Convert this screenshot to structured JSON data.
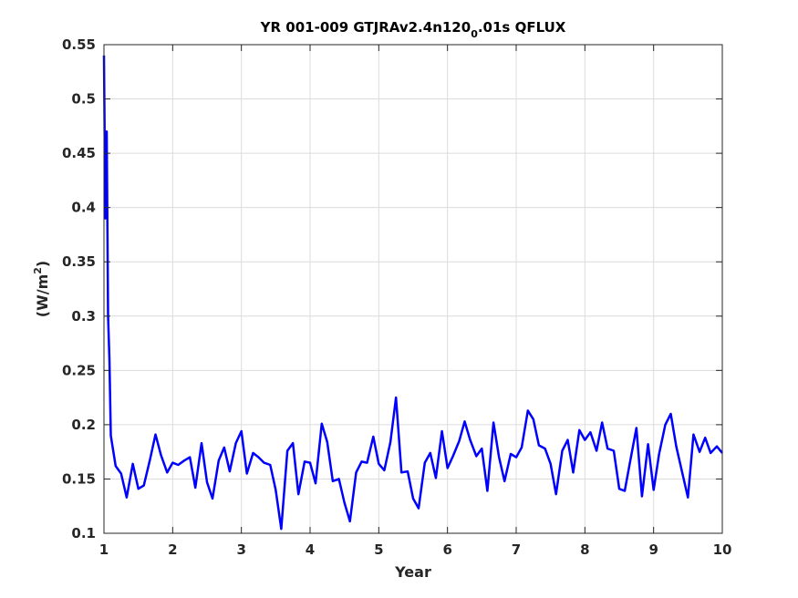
{
  "chart_data": {
    "type": "line",
    "title_main": "YR 001-009 GTJRAv2.4n120",
    "title_sub": "0",
    "title_tail": ".01s QFLUX",
    "xlabel": "Year",
    "ylabel_main": "(W/m",
    "ylabel_sup": "2",
    "ylabel_tail": ")",
    "xlim": [
      1,
      10
    ],
    "ylim": [
      0.1,
      0.55
    ],
    "xticks": [
      1,
      2,
      3,
      4,
      5,
      6,
      7,
      8,
      9,
      10
    ],
    "yticks": [
      0.1,
      0.15,
      0.2,
      0.25,
      0.3,
      0.35,
      0.4,
      0.45,
      0.5,
      0.55
    ],
    "xtick_labels": [
      "1",
      "2",
      "3",
      "4",
      "5",
      "6",
      "7",
      "8",
      "9",
      "10"
    ],
    "ytick_labels": [
      "0.1",
      "0.15",
      "0.2",
      "0.25",
      "0.3",
      "0.35",
      "0.4",
      "0.45",
      "0.5",
      "0.55"
    ],
    "grid": true,
    "line_color": "#0000ff",
    "series": [
      {
        "x": [
          1.0,
          1.02,
          1.04,
          1.06,
          1.08,
          1.1,
          1.17,
          1.25,
          1.33,
          1.42,
          1.5,
          1.58,
          1.67,
          1.75,
          1.83,
          1.92,
          2.0,
          2.08,
          2.17,
          2.25,
          2.33,
          2.42,
          2.5,
          2.58,
          2.67,
          2.75,
          2.83,
          2.92,
          3.0,
          3.08,
          3.17,
          3.25,
          3.33,
          3.42,
          3.5,
          3.58,
          3.67,
          3.75,
          3.83,
          3.92,
          4.0,
          4.08,
          4.17,
          4.25,
          4.33,
          4.42,
          4.5,
          4.58,
          4.67,
          4.75,
          4.83,
          4.92,
          5.0,
          5.08,
          5.17,
          5.25,
          5.33,
          5.42,
          5.5,
          5.58,
          5.67,
          5.75,
          5.83,
          5.92,
          6.0,
          6.08,
          6.17,
          6.25,
          6.33,
          6.42,
          6.5,
          6.58,
          6.67,
          6.75,
          6.83,
          6.92,
          7.0,
          7.08,
          7.17,
          7.25,
          7.33,
          7.42,
          7.5,
          7.58,
          7.67,
          7.75,
          7.83,
          7.92,
          8.0,
          8.08,
          8.17,
          8.25,
          8.33,
          8.42,
          8.5,
          8.58,
          8.67,
          8.75,
          8.83,
          8.92,
          9.0,
          9.08,
          9.17,
          9.25,
          9.33,
          9.42,
          9.5,
          9.58,
          9.67,
          9.75,
          9.83,
          9.92,
          10.0
        ],
        "values": [
          0.54,
          0.39,
          0.47,
          0.3,
          0.26,
          0.19,
          0.162,
          0.155,
          0.133,
          0.164,
          0.141,
          0.144,
          0.168,
          0.191,
          0.172,
          0.156,
          0.165,
          0.163,
          0.167,
          0.17,
          0.142,
          0.183,
          0.147,
          0.132,
          0.167,
          0.179,
          0.157,
          0.183,
          0.194,
          0.155,
          0.174,
          0.17,
          0.165,
          0.163,
          0.14,
          0.104,
          0.176,
          0.183,
          0.136,
          0.166,
          0.165,
          0.146,
          0.201,
          0.184,
          0.148,
          0.15,
          0.128,
          0.111,
          0.156,
          0.166,
          0.165,
          0.189,
          0.164,
          0.158,
          0.184,
          0.225,
          0.156,
          0.157,
          0.132,
          0.123,
          0.165,
          0.174,
          0.151,
          0.194,
          0.16,
          0.171,
          0.185,
          0.203,
          0.186,
          0.171,
          0.178,
          0.139,
          0.202,
          0.17,
          0.148,
          0.173,
          0.17,
          0.179,
          0.213,
          0.205,
          0.181,
          0.178,
          0.164,
          0.136,
          0.176,
          0.186,
          0.156,
          0.195,
          0.186,
          0.193,
          0.176,
          0.202,
          0.178,
          0.176,
          0.141,
          0.139,
          0.17,
          0.197,
          0.134,
          0.182,
          0.14,
          0.173,
          0.2,
          0.21,
          0.18,
          0.155,
          0.133,
          0.191,
          0.175,
          0.188,
          0.174,
          0.18,
          0.174
        ]
      }
    ]
  }
}
